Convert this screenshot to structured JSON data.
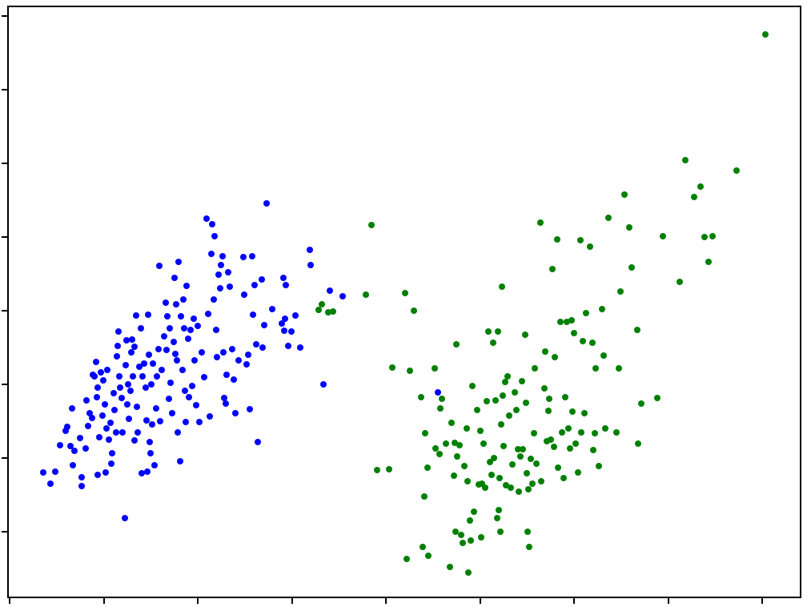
{
  "chart_data": {
    "type": "scatter",
    "xlim": [
      10,
      1000
    ],
    "ylim": [
      0,
      738
    ],
    "xticks": [
      12,
      130,
      247,
      365,
      482,
      600,
      717,
      835,
      952
    ],
    "yticks": [
      82,
      174,
      266,
      358,
      450,
      542,
      634,
      726
    ],
    "series": [
      {
        "color": "#0000ff",
        "x": [
          54,
          63,
          69,
          75,
          82,
          84,
          88,
          90,
          91,
          93,
          100,
          102,
          102,
          107,
          108,
          110,
          112,
          115,
          116,
          118,
          120,
          121,
          122,
          122,
          124,
          126,
          128,
          129,
          131,
          132,
          133,
          134,
          136,
          138,
          139,
          140,
          142,
          143,
          145,
          146,
          147,
          148,
          149,
          150,
          152,
          153,
          156,
          157,
          158,
          159,
          160,
          161,
          163,
          164,
          165,
          166,
          168,
          168,
          170,
          171,
          172,
          174,
          176,
          177,
          178,
          180,
          182,
          183,
          184,
          185,
          186,
          187,
          188,
          189,
          190,
          191,
          193,
          195,
          196,
          198,
          199,
          200,
          202,
          205,
          207,
          208,
          209,
          211,
          212,
          213,
          215,
          217,
          218,
          219,
          220,
          221,
          222,
          223,
          225,
          226,
          228,
          229,
          230,
          231,
          232,
          233,
          235,
          236,
          238,
          240,
          242,
          243,
          245,
          247,
          249,
          252,
          255,
          258,
          260,
          262,
          264,
          265,
          267,
          268,
          270,
          271,
          273,
          275,
          276,
          278,
          279,
          280,
          282,
          283,
          285,
          287,
          290,
          292,
          294,
          298,
          304,
          305,
          308,
          310,
          312,
          315,
          316,
          318,
          320,
          322,
          327,
          328,
          330,
          333,
          340,
          352,
          354,
          355,
          356,
          357,
          360,
          364,
          369,
          375,
          387,
          388,
          404,
          412,
          428,
          547
        ],
        "y": [
          156,
          142,
          157,
          190,
          208,
          213,
          189,
          236,
          165,
          183,
          199,
          150,
          139,
          186,
          246,
          214,
          230,
          224,
          278,
          276,
          294,
          250,
          262,
          153,
          200,
          281,
          227,
          271,
          241,
          156,
          211,
          284,
          197,
          218,
          167,
          180,
          255,
          234,
          206,
          301,
          314,
          332,
          276,
          262,
          249,
          206,
          99,
          290,
          321,
          241,
          266,
          223,
          258,
          306,
          322,
          276,
          313,
          196,
          352,
          238,
          206,
          288,
          336,
          155,
          276,
          292,
          262,
          221,
          157,
          353,
          303,
          194,
          180,
          266,
          216,
          292,
          165,
          236,
          276,
          310,
          414,
          220,
          284,
          326,
          368,
          309,
          351,
          248,
          336,
          268,
          230,
          319,
          399,
          304,
          366,
          296,
          206,
          419,
          170,
          351,
          284,
          372,
          336,
          258,
          219,
          389,
          323,
          250,
          334,
          264,
          348,
          296,
          240,
          339,
          219,
          306,
          275,
          473,
          354,
          226,
          429,
          466,
          372,
          451,
          334,
          300,
          403,
          386,
          415,
          426,
          306,
          249,
          242,
          278,
          406,
          388,
          310,
          272,
          230,
          296,
          425,
          378,
          291,
          303,
          235,
          426,
          353,
          390,
          316,
          194,
          397,
          312,
          340,
          492,
          360,
          342,
          399,
          333,
          348,
          390,
          314,
          332,
          352,
          312,
          434,
          415,
          266,
          383,
          376,
          256
        ]
      },
      {
        "color": "#008000",
        "x": [
          398,
          402,
          410,
          416,
          457,
          464,
          471,
          486,
          490,
          506,
          508,
          512,
          517,
          526,
          528,
          530,
          531,
          534,
          535,
          543,
          544,
          549,
          550,
          552,
          557,
          562,
          564,
          567,
          568,
          569,
          570,
          571,
          574,
          576,
          578,
          580,
          583,
          584,
          585,
          587,
          588,
          590,
          592,
          596,
          598,
          600,
          601,
          602,
          604,
          606,
          608,
          610,
          612,
          614,
          616,
          617,
          619,
          621,
          622,
          623,
          624,
          625,
          626,
          627,
          628,
          629,
          631,
          632,
          634,
          636,
          638,
          640,
          643,
          645,
          647,
          648,
          650,
          652,
          653,
          656,
          657,
          658,
          659,
          660,
          661,
          663,
          665,
          667,
          668,
          670,
          675,
          676,
          680,
          681,
          683,
          685,
          686,
          688,
          690,
          692,
          693,
          696,
          697,
          700,
          702,
          704,
          706,
          708,
          710,
          712,
          714,
          715,
          717,
          719,
          722,
          725,
          726,
          728,
          730,
          732,
          737,
          740,
          741,
          743,
          744,
          748,
          752,
          754,
          756,
          760,
          770,
          773,
          775,
          780,
          786,
          789,
          796,
          797,
          801,
          821,
          828,
          849,
          856,
          867,
          875,
          880,
          885,
          890,
          920,
          956
        ],
        "y": [
          359,
          366,
          356,
          357,
          378,
          465,
          159,
          160,
          287,
          380,
          48,
          283,
          358,
          250,
          63,
          126,
          205,
          162,
          52,
          286,
          186,
          179,
          236,
          248,
          192,
          38,
          218,
          152,
          193,
          82,
          316,
          176,
          190,
          78,
          68,
          164,
          211,
          145,
          31,
          96,
          71,
          264,
          107,
          234,
          141,
          208,
          75,
          142,
          192,
          137,
          245,
          332,
          169,
          153,
          318,
          174,
          246,
          99,
          332,
          109,
          149,
          82,
          216,
          388,
          252,
          189,
          269,
          140,
          276,
          227,
          137,
          166,
          256,
          234,
          185,
          132,
          176,
          270,
          185,
          328,
          243,
          155,
          82,
          135,
          63,
          173,
          142,
          205,
          286,
          167,
          468,
          145,
          261,
          307,
          195,
          233,
          248,
          197,
          410,
          188,
          300,
          447,
          162,
          344,
          206,
          149,
          250,
          344,
          211,
          186,
          346,
          232,
          330,
          192,
          156,
          446,
          206,
          320,
          230,
          355,
          438,
          318,
          184,
          205,
          286,
          164,
          360,
          302,
          211,
          474,
          206,
          286,
          382,
          503,
          462,
          412,
          334,
          192,
          242,
          249,
          451,
          394,
          546,
          500,
          513,
          450,
          419,
          451,
          533,
          703
        ]
      }
    ]
  }
}
